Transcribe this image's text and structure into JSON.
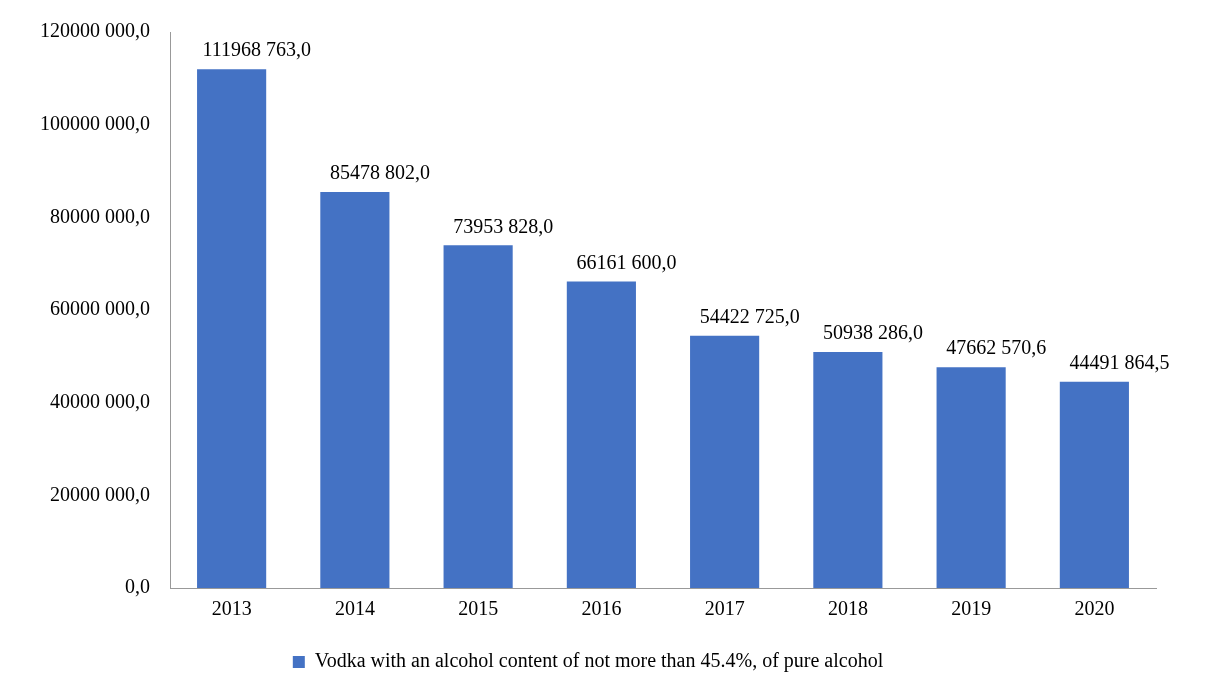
{
  "chart_data": {
    "type": "bar",
    "categories": [
      "2013",
      "2014",
      "2015",
      "2016",
      "2017",
      "2018",
      "2019",
      "2020"
    ],
    "series": [
      {
        "name": "Vodka with an alcohol content of not more than 45.4%, of pure alcohol",
        "color": "#4472c4",
        "values": [
          111968763.0,
          85478802.0,
          73953828.0,
          66161600.0,
          54422725.0,
          50938286.0,
          47662570.6,
          44491864.5
        ],
        "value_labels": [
          "111968 763,0",
          "85478 802,0",
          "73953 828,0",
          "66161 600,0",
          "54422 725,0",
          "50938 286,0",
          "47662 570,6",
          "44491 864,5"
        ]
      }
    ],
    "ylim": [
      0,
      120000000
    ],
    "yticks": [
      {
        "value": 0,
        "label": "0,0"
      },
      {
        "value": 20000000,
        "label": "20000 000,0"
      },
      {
        "value": 40000000,
        "label": "40000 000,0"
      },
      {
        "value": 60000000,
        "label": "60000 000,0"
      },
      {
        "value": 80000000,
        "label": "80000 000,0"
      },
      {
        "value": 100000000,
        "label": "100000 000,0"
      },
      {
        "value": 120000000,
        "label": "120000 000,0"
      }
    ],
    "legend": "bottom"
  }
}
